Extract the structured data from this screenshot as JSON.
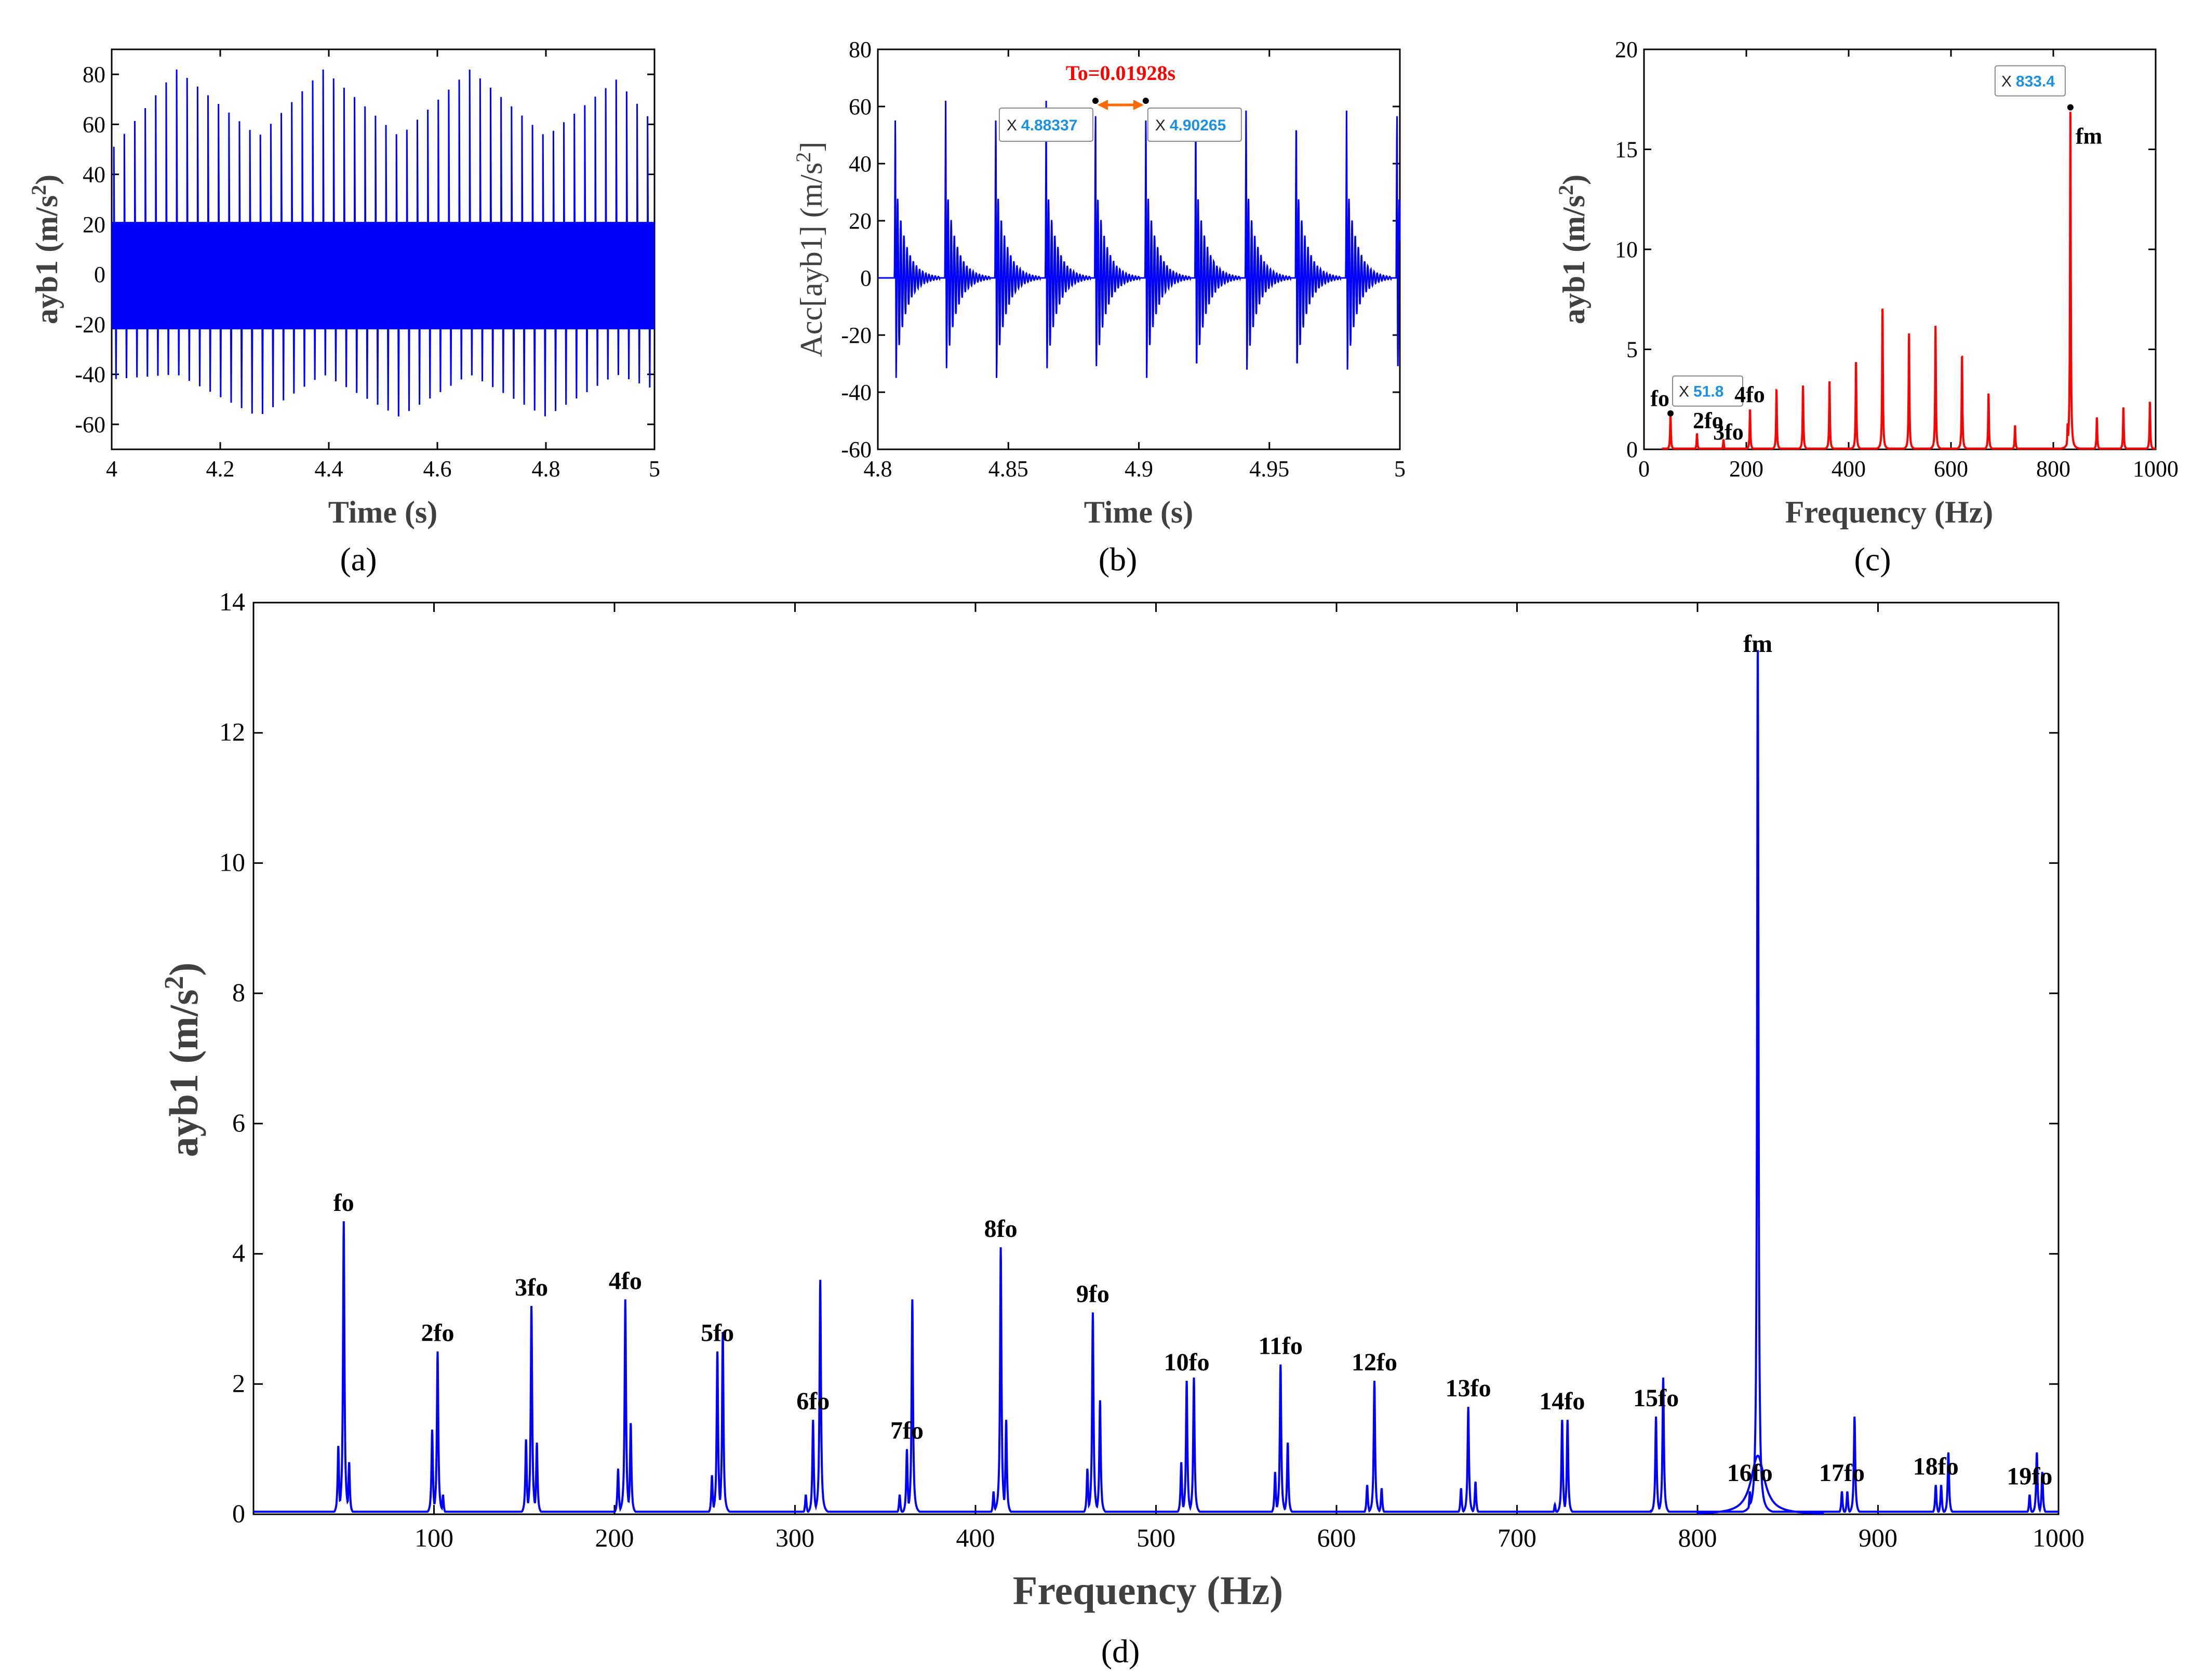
{
  "colors": {
    "blue": "#0000ff",
    "red": "#ff0000",
    "annot_red": "#ff0000",
    "arrow": "#ff6a00",
    "tip_value": "#1e90e0"
  },
  "chart_data": [
    {
      "id": "a",
      "type": "line",
      "caption": "(a)",
      "xlabel": "Time (s)",
      "ylabel_main": "ayb1 (m/s",
      "ylabel_sup": "2",
      "ylabel_close": ")",
      "xlim": [
        4,
        5
      ],
      "ylim": [
        -70,
        90
      ],
      "xticks": [
        "4",
        "4.2",
        "4.4",
        "4.6",
        "4.8",
        "5"
      ],
      "yticks": [
        "-60",
        "-40",
        "-20",
        "0",
        "20",
        "40",
        "60",
        "80"
      ],
      "series": [
        {
          "color": "#0000ff",
          "band": [
            -22,
            21
          ],
          "impact_period_s": 0.01928,
          "first_impact_s": 4.0,
          "max_envelope": [
            [
              4.0,
              50
            ],
            [
              4.12,
              82
            ],
            [
              4.27,
              55
            ],
            [
              4.39,
              82
            ],
            [
              4.53,
              55
            ],
            [
              4.66,
              82
            ],
            [
              4.8,
              55
            ],
            [
              4.93,
              78
            ],
            [
              5.0,
              60
            ]
          ],
          "min_envelope": [
            [
              4.0,
              -42
            ],
            [
              4.12,
              -40
            ],
            [
              4.27,
              -57
            ],
            [
              4.39,
              -40
            ],
            [
              4.53,
              -57
            ],
            [
              4.66,
              -40
            ],
            [
              4.8,
              -57
            ],
            [
              4.93,
              -40
            ],
            [
              5.0,
              -46
            ]
          ]
        }
      ]
    },
    {
      "id": "b",
      "type": "line",
      "caption": "(b)",
      "xlabel": "Time (s)",
      "ylabel_main": "Acc[ayb1] (m/s",
      "ylabel_sup": "2",
      "ylabel_close": "]",
      "xlim": [
        4.8,
        5.0
      ],
      "ylim": [
        -60,
        80
      ],
      "xticks": [
        "4.8",
        "4.85",
        "4.9",
        "4.95",
        "5"
      ],
      "yticks": [
        "-60",
        "-40",
        "-20",
        "0",
        "20",
        "40",
        "60",
        "80"
      ],
      "series": [
        {
          "color": "#0000ff",
          "impact_period_s": 0.01928,
          "impacts_s": [
            4.8067,
            4.826,
            4.8452,
            4.8645,
            4.8834,
            4.9027,
            4.9218,
            4.9411,
            4.9603,
            4.9796,
            4.9989
          ],
          "impact_peak": 62,
          "impact_min": -35,
          "secondary_peak": 38
        }
      ],
      "annotations": {
        "period_label": "To=0.01928s",
        "tip1": {
          "x": 4.88337,
          "y": 62,
          "label": "X",
          "value": "4.88337"
        },
        "tip2": {
          "x": 4.90265,
          "y": 62,
          "label": "X",
          "value": "4.90265"
        }
      }
    },
    {
      "id": "c",
      "type": "line",
      "caption": "(c)",
      "xlabel": "Frequency (Hz)",
      "ylabel_main": "ayb1 (m/s",
      "ylabel_sup": "2",
      "ylabel_close": ")",
      "xlim": [
        0,
        1000
      ],
      "ylim": [
        0,
        20
      ],
      "xticks": [
        "0",
        "200",
        "400",
        "600",
        "800",
        "1000"
      ],
      "yticks": [
        "0",
        "5",
        "10",
        "15",
        "20"
      ],
      "series": [
        {
          "color": "#ff0000",
          "peaks": [
            [
              51.8,
              1.8
            ],
            [
              103.6,
              0.8
            ],
            [
              155.4,
              0.5
            ],
            [
              207.2,
              2.0
            ],
            [
              259,
              3.0
            ],
            [
              310.8,
              3.2
            ],
            [
              362.6,
              3.4
            ],
            [
              414.4,
              4.4
            ],
            [
              466.2,
              7.1
            ],
            [
              518,
              5.8
            ],
            [
              569.8,
              6.2
            ],
            [
              621.6,
              4.7
            ],
            [
              673.4,
              2.8
            ],
            [
              725.2,
              1.2
            ],
            [
              833.4,
              17.1
            ],
            [
              828,
              1.3
            ],
            [
              885.2,
              1.6
            ],
            [
              937,
              2.1
            ],
            [
              988.8,
              2.4
            ]
          ]
        }
      ],
      "annotations": {
        "labels": [
          "fo",
          "2fo",
          "3fo",
          "4fo",
          "fm"
        ],
        "tip_fo": {
          "x": 51.8,
          "y": 1.8,
          "label": "X",
          "value": "51.8"
        },
        "tip_fm": {
          "x": 833.4,
          "y": 17.1,
          "label": "X",
          "value": "833.4"
        }
      }
    },
    {
      "id": "d",
      "type": "line",
      "caption": "(d)",
      "xlabel": "Frequency (Hz)",
      "ylabel_main": "ayb1 (m/s",
      "ylabel_sup": "2",
      "ylabel_close": ")",
      "xlim": [
        0,
        1000
      ],
      "ylim": [
        0,
        14
      ],
      "xticks": [
        "100",
        "200",
        "300",
        "400",
        "500",
        "600",
        "700",
        "800",
        "900",
        "1000"
      ],
      "yticks": [
        "0",
        "2",
        "4",
        "6",
        "8",
        "10",
        "12",
        "14"
      ],
      "series": [
        {
          "color": "#0000ff",
          "peaks": [
            [
              47,
              1.05
            ],
            [
              50,
              4.5
            ],
            [
              53,
              0.8
            ],
            [
              99,
              1.3
            ],
            [
              102,
              2.5
            ],
            [
              105,
              0.3
            ],
            [
              151,
              1.15
            ],
            [
              154,
              3.2
            ],
            [
              157,
              1.1
            ],
            [
              202,
              0.7
            ],
            [
              206,
              3.3
            ],
            [
              209,
              1.4
            ],
            [
              254,
              0.6
            ],
            [
              257,
              2.5
            ],
            [
              260,
              2.8
            ],
            [
              306,
              0.3
            ],
            [
              310,
              1.45
            ],
            [
              314,
              3.6
            ],
            [
              358,
              0.3
            ],
            [
              362,
              1.0
            ],
            [
              365,
              3.3
            ],
            [
              410,
              0.35
            ],
            [
              414,
              4.1
            ],
            [
              417,
              1.45
            ],
            [
              462,
              0.7
            ],
            [
              465,
              3.1
            ],
            [
              469,
              1.75
            ],
            [
              514,
              0.8
            ],
            [
              517,
              2.05
            ],
            [
              521,
              2.1
            ],
            [
              566,
              0.65
            ],
            [
              569,
              2.3
            ],
            [
              573,
              1.1
            ],
            [
              617,
              0.45
            ],
            [
              621,
              2.05
            ],
            [
              625,
              0.4
            ],
            [
              669,
              0.4
            ],
            [
              673,
              1.65
            ],
            [
              677,
              0.5
            ],
            [
              721,
              0.15
            ],
            [
              725,
              1.45
            ],
            [
              728,
              1.45
            ],
            [
              774,
              0.05
            ],
            [
              777,
              1.5
            ],
            [
              781,
              2.1
            ],
            [
              829,
              0.35
            ],
            [
              833.4,
              13.4
            ],
            [
              836,
              0.2
            ],
            [
              880,
              0.35
            ],
            [
              883,
              0.35
            ],
            [
              887,
              1.5
            ],
            [
              932,
              0.45
            ],
            [
              935,
              0.45
            ],
            [
              939,
              0.95
            ],
            [
              984,
              0.3
            ],
            [
              988,
              0.95
            ],
            [
              991,
              0.65
            ]
          ]
        }
      ],
      "annotations": [
        {
          "text": "fo",
          "x": 50,
          "y": 4.5
        },
        {
          "text": "2fo",
          "x": 102,
          "y": 2.5
        },
        {
          "text": "3fo",
          "x": 154,
          "y": 3.2
        },
        {
          "text": "4fo",
          "x": 206,
          "y": 3.3
        },
        {
          "text": "5fo",
          "x": 257,
          "y": 2.5
        },
        {
          "text": "6fo",
          "x": 310,
          "y": 1.45
        },
        {
          "text": "7fo",
          "x": 362,
          "y": 1.0
        },
        {
          "text": "8fo",
          "x": 414,
          "y": 4.1
        },
        {
          "text": "9fo",
          "x": 465,
          "y": 3.1
        },
        {
          "text": "10fo",
          "x": 517,
          "y": 2.05
        },
        {
          "text": "11fo",
          "x": 569,
          "y": 2.3
        },
        {
          "text": "12fo",
          "x": 621,
          "y": 2.05
        },
        {
          "text": "13fo",
          "x": 673,
          "y": 1.65
        },
        {
          "text": "14fo",
          "x": 725,
          "y": 1.45
        },
        {
          "text": "15fo",
          "x": 777,
          "y": 1.5
        },
        {
          "text": "16fo",
          "x": 829,
          "y": 0.35
        },
        {
          "text": "17fo",
          "x": 880,
          "y": 0.35
        },
        {
          "text": "18fo",
          "x": 932,
          "y": 0.45
        },
        {
          "text": "19fo",
          "x": 984,
          "y": 0.3
        },
        {
          "text": "fm",
          "x": 833.4,
          "y": 13.4
        }
      ]
    }
  ]
}
